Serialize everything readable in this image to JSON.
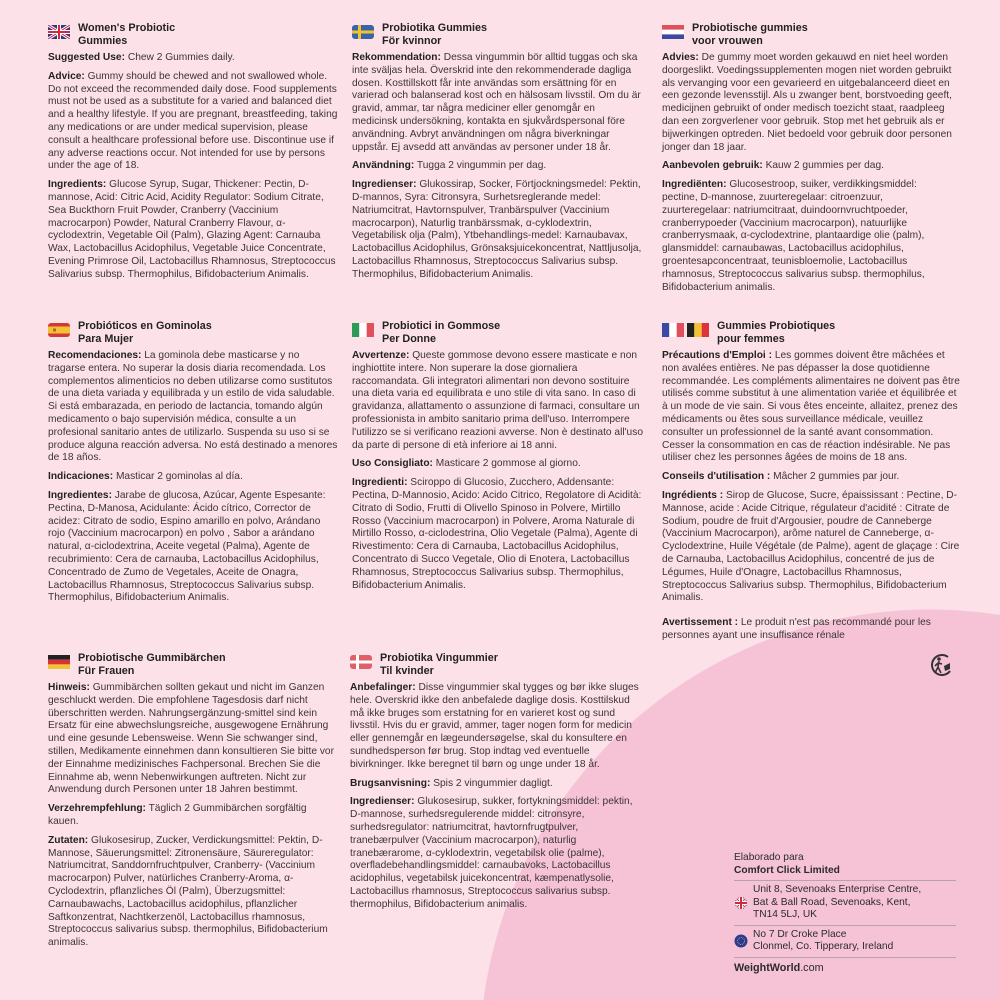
{
  "colors": {
    "background": "#fde1e9",
    "accent_shape": "#f5c3d5",
    "text": "#3b3538"
  },
  "sections": [
    {
      "id": "en",
      "flags": [
        "uk"
      ],
      "title": [
        "Women's Probiotic",
        "Gummies"
      ],
      "paragraphs": [
        {
          "label": "Suggested Use:",
          "text": " Chew 2 Gummies daily."
        },
        {
          "label": "Advice:",
          "text": " Gummy should be chewed and not swallowed whole. Do not exceed the recommended daily dose. Food supplements must not be used as a substitute for a varied and balanced diet and a healthy lifestyle. If you are pregnant, breastfeeding, taking any medications or are under medical supervision, please consult a healthcare professional before use. Discontinue use if any adverse reactions occur. Not intended for use by persons under the age of 18."
        },
        {
          "label": "Ingredients:",
          "text": " Glucose Syrup, Sugar, Thickener: Pectin, D-mannose, Acid: Citric Acid, Acidity Regulator: Sodium Citrate, Sea Buckthorn Fruit Powder, Cranberry (Vaccinium macrocarpon) Powder, Natural Cranberry Flavour, α-cyclodextrin, Vegetable Oil (Palm), Glazing Agent: Carnauba Wax, Lactobacillus Acidophilus, Vegetable Juice Concentrate, Evening Primrose Oil, Lactobacillus Rhamnosus, Streptococcus Salivarius subsp. Thermophilus, Bifidobacterium Animalis."
        }
      ]
    },
    {
      "id": "es",
      "flags": [
        "es"
      ],
      "title": [
        "Probióticos en Gominolas",
        "Para Mujer"
      ],
      "paragraphs": [
        {
          "label": "Recomendaciones:",
          "text": " La gominola debe masticarse y no tragarse entera. No superar la dosis diaria recomendada. Los complementos alimenticios no deben utilizarse como sustitutos de una dieta variada y equilibrada y un estilo de vida saludable. Si está embarazada, en periodo de lactancia, tomando algún medicamento o bajo supervisión médica, consulte a un profesional sanitario antes de utilizarlo. Suspenda su uso si se produce alguna reacción adversa. No está destinado a menores de 18 años."
        },
        {
          "label": "Indicaciones:",
          "text": " Masticar 2 gominolas al día."
        },
        {
          "label": "Ingredientes:",
          "text": " Jarabe de glucosa, Azúcar, Agente Espesante: Pectina, D-Manosa, Acidulante: Ácido cítrico, Corrector de acidez: Citrato de sodio, Espino amarillo en polvo, Arándano rojo (Vaccinium macrocarpon) en polvo , Sabor a arándano natural, α-ciclodextrina, Aceite vegetal (Palma), Agente de recubrimiento: Cera de carnauba, Lactobacillus Acidophilus, Concentrado de Zumo de Vegetales, Aceite de Onagra, Lactobacillus Rhamnosus, Streptococcus Salivarius subsp. Thermophilus, Bifidobacterium Animalis."
        }
      ]
    },
    {
      "id": "de",
      "flags": [
        "de"
      ],
      "title": [
        "Probiotische Gummibärchen",
        "Für Frauen"
      ],
      "paragraphs": [
        {
          "label": "Hinweis:",
          "text": " Gummibärchen sollten gekaut und nicht im Ganzen geschluckt werden. Die empfohlene Tagesdosis darf nicht überschritten werden. Nahrungsergänzung-smittel sind kein Ersatz für eine abwechslungsreiche, ausgewogene Ernährung und eine gesunde Lebensweise. Wenn Sie schwanger sind, stillen, Medikamente einnehmen dann konsultieren Sie bitte vor der Einnahme medizinisches Fachpersonal. Brechen Sie die Einnahme ab, wenn Nebenwirkungen auftreten. Nicht zur Anwendung durch Personen unter 18 Jahren bestimmt."
        },
        {
          "label": "Verzehrempfehlung:",
          "text": " Täglich 2 Gummibärchen sorgfältig kauen."
        },
        {
          "label": "Zutaten:",
          "text": " Glukosesirup, Zucker, Verdickungsmittel: Pektin, D-Mannose, Säuerungsmittel: Zitronensäure, Säureregulator: Natriumcitrat, Sanddornfruchtpulver, Cranberry- (Vaccinium macrocarpon) Pulver, natürliches Cranberry-Aroma, α-Cyclodextrin, pflanzliches Öl (Palm), Überzugsmittel: Carnaubawachs, Lactobacillus acidophilus, pflanzlicher Saftkonzentrat, Nachtkerzenöl, Lactobacillus rhamnosus, Streptococcus salivarius subsp. thermophilus, Bifidobacterium animalis."
        }
      ]
    },
    {
      "id": "sv",
      "flags": [
        "se"
      ],
      "title": [
        "Probiotika Gummies",
        "För kvinnor"
      ],
      "paragraphs": [
        {
          "label": "Rekommendation:",
          "text": " Dessa vingummin bör alltid tuggas och ska inte sväljas hela. Överskrid inte den rekommenderade dagliga dosen. Kosttillskott får inte användas som ersättning för en varierad och balanserad kost och en hälsosam livsstil. Om du är gravid, ammar, tar några mediciner eller genomgår en medicinsk undersökning, kontakta en sjukvårdspersonal före användning. Avbryt användningen om några biverkningar uppstår. Ej avsedd att användas av personer under 18 år."
        },
        {
          "label": "Användning:",
          "text": " Tugga 2 vingummin per dag."
        },
        {
          "label": "Ingredienser:",
          "text": " Glukossirap, Socker, Förtjockningsmedel: Pektin, D-mannos, Syra: Citronsyra, Surhetsreglerande medel: Natriumcitrat, Havtornspulver, Tranbärspulver (Vaccinium macrocarpon), Naturlig tranbärssmak, α-cyklodextrin, Vegetabilisk olja (Palm), Ytbehandlings-medel: Karnaubavax, Lactobacillus Acidophilus, Grönsaksjuicekoncentrat, Nattljusolja, Lactobacillus Rhamnosus, Streptococcus Salivarius subsp. Thermophilus, Bifidobacterium Animalis."
        }
      ]
    },
    {
      "id": "it",
      "flags": [
        "it"
      ],
      "title": [
        "Probiotici in Gommose",
        "Per Donne"
      ],
      "paragraphs": [
        {
          "label": "Avvertenze:",
          "text": " Queste gommose devono essere masticate e non inghiottite intere. Non superare la dose giornaliera raccomandata. Gli integratori alimentari non devono sostituire una dieta varia ed equilibrata e uno stile di vita sano. In caso di gravidanza, allattamento o assunzione di farmaci, consultare un professionista in ambito sanitario prima dell'uso. Interrompere l'utilizzo se si verificano reazioni avverse. Non è destinato all'uso da parte di persone di età inferiore ai 18 anni."
        },
        {
          "label": "Uso Consigliato:",
          "text": " Masticare 2 gommose al giorno."
        },
        {
          "label": "Ingredienti:",
          "text": " Sciroppo di Glucosio, Zucchero, Addensante: Pectina, D-Mannosio, Acido: Acido Citrico, Regolatore di Acidità: Citrato di Sodio, Frutti di Olivello Spinoso in Polvere, Mirtillo Rosso (Vaccinium macrocarpon) in Polvere, Aroma Naturale di Mirtillo Rosso, α-ciclodestrina, Olio Vegetale (Palma), Agente di Rivestimento: Cera di Carnauba, Lactobacillus Acidophilus, Concentrato di Succo Vegetale, Olio di Enotera, Lactobacillus Rhamnosus, Streptococcus Salivarius subsp. Thermophilus, Bifidobacterium Animalis."
        }
      ]
    },
    {
      "id": "da",
      "flags": [
        "dk"
      ],
      "title": [
        "Probiotika Vingummier",
        "Til kvinder"
      ],
      "paragraphs": [
        {
          "label": "Anbefalinger:",
          "text": " Disse vingummier skal tygges og bør ikke sluges hele. Overskrid ikke den anbefalede daglige dosis. Kosttilskud må ikke bruges som erstatning for en varieret kost og sund livsstil. Hvis du er gravid, ammer, tager nogen form for medicin eller gennemgår en lægeundersøgelse, skal du konsultere en sundhedsperson før brug. Stop indtag ved eventuelle bivirkninger. Ikke beregnet til børn og unge under 18 år."
        },
        {
          "label": "Brugsanvisning:",
          "text": " Spis 2 vingummier dagligt."
        },
        {
          "label": "Ingredienser:",
          "text": " Glukosesirup, sukker, fortykningsmiddel: pektin, D-mannose, surhedsregulerende middel: citronsyre, surhedsregulator: natriumcitrat, havtornfrugtpulver, tranebærpulver (Vaccinium macrocarpon), naturlig tranebærarome, α-cyklodextrin, vegetabilsk olie (palme), overfladebehandlingsmiddel: carnaubavoks, Lactobacillus acidophilus, vegetabilsk juicekoncentrat, kæmpenatlysolie, Lactobacillus rhamnosus, Streptococcus salivarius subsp. thermophilus, Bifidobacterium animalis."
        }
      ]
    },
    {
      "id": "nl",
      "flags": [
        "nl"
      ],
      "title": [
        "Probiotische gummies",
        "voor vrouwen"
      ],
      "paragraphs": [
        {
          "label": "Advies:",
          "text": " De gummy moet worden gekauwd en niet heel worden doorgeslikt.  Voedingssupplementen mogen niet worden gebruikt als vervanging voor een gevarieerd en uitgebalanceerd dieet en een gezonde levensstijl. Als u zwanger bent, borstvoeding geeft, medicijnen gebruikt of onder medisch toezicht staat, raadpleeg dan een zorgverlener voor gebruik. Stop met het gebruik als er bijwerkingen optreden. Niet bedoeld voor gebruik door personen jonger dan 18 jaar."
        },
        {
          "label": "Aanbevolen gebruik:",
          "text": " Kauw 2 gummies per dag."
        },
        {
          "label": "Ingrediënten:",
          "text": " Glucosestroop, suiker, verdikkingsmiddel: pectine, D-mannose, zuurteregelaar: citroenzuur, zuurteregelaar: natriumcitraat, duindoornvruchtpoeder, cranberrypoeder (Vaccinium macrocarpon), natuurlijke cranberrysmaak, α-cyclodextrine, plantaardige olie (palm), glansmiddel: carnaubawas, Lactobacillus acidophilus, groentesapconcentraat, teunisbloemolie, Lactobacillus rhamnosus, Streptococcus salivarius subsp. thermophilus, Bifidobacterium animalis."
        }
      ]
    },
    {
      "id": "fr",
      "flags": [
        "fr",
        "be"
      ],
      "title": [
        "Gummies Probiotiques",
        "pour femmes"
      ],
      "paragraphs": [
        {
          "label": "Précautions d'Emploi :",
          "text": "  Les gommes doivent être mâchées et non avalées entières. Ne pas dépasser la dose quotidienne recommandée. Les compléments alimentaires ne doivent pas être utilisés comme substitut à une alimentation variée et équilibrée et à un mode de vie sain. Si vous êtes enceinte, allaitez, prenez des médicaments ou êtes sous surveillance médicale, veuillez consulter un professionnel de la santé avant consommation. Cesser la consommation en cas de réaction indésirable. Ne pas utiliser chez les personnes âgées de moins de 18 ans."
        },
        {
          "label": "Conseils d'utilisation :",
          "text": " Mâcher 2 gummies par jour."
        },
        {
          "label": "Ingrédients :",
          "text": " Sirop de Glucose, Sucre, épaississant : Pectine, D-Mannose, acide : Acide Citrique, régulateur d'acidité : Citrate de Sodium, poudre de fruit d'Argousier, poudre de Canneberge (Vaccinium Macrocarpon), arôme naturel de Canneberge, α-Cyclodextrine, Huile Végétale (de Palme), agent de glaçage : Cire de Carnauba, Lactobacillus Acidophilus, concentré de jus de Légumes, Huile d'Onagre, Lactobacillus Rhamnosus, Streptococcus Salivarius subsp. Thermophilus, Bifidobacterium Animalis."
        },
        {
          "label": "Avertissement :",
          "text": " Le produit n'est pas recommandé pour les personnes ayant une insuffisance rénale"
        }
      ]
    }
  ],
  "footer": {
    "made_for": "Elaborado para",
    "company": "Comfort Click Limited",
    "uk_address": [
      "Unit 8, Sevenoaks Enterprise Centre,",
      "Bat & Ball Road, Sevenoaks, Kent,",
      "TN14 5LJ, UK"
    ],
    "eu_address": [
      "No 7 Dr Croke Place",
      "Clonmel, Co. Tipperary, Ireland"
    ],
    "brand_bold": "WeightWorld",
    "brand_suffix": ".com"
  },
  "icons": {
    "recycling": "triman-recycling-icon"
  }
}
